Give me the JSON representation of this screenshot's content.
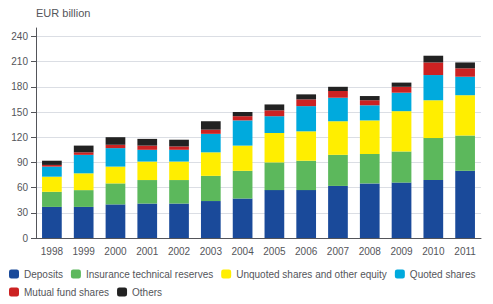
{
  "chart_data": {
    "type": "bar",
    "stacked": true,
    "ylabel": "EUR billion",
    "categories": [
      "1998",
      "1999",
      "2000",
      "2001",
      "2002",
      "2003",
      "2004",
      "2005",
      "2006",
      "2007",
      "2008",
      "2009",
      "2010",
      "2011"
    ],
    "series": [
      {
        "name": "Deposits",
        "color": "#1a4a9a",
        "values": [
          37,
          37,
          40,
          41,
          41,
          44,
          47,
          57,
          57,
          62,
          65,
          66,
          69,
          80
        ]
      },
      {
        "name": "Insurance technical reserves",
        "color": "#5cb85c",
        "values": [
          18,
          20,
          25,
          28,
          28,
          30,
          33,
          33,
          35,
          37,
          35,
          37,
          50,
          42
        ]
      },
      {
        "name": "Unquoted shares and other equity",
        "color": "#ffee00",
        "values": [
          18,
          20,
          20,
          22,
          22,
          28,
          30,
          35,
          35,
          40,
          40,
          48,
          45,
          48
        ]
      },
      {
        "name": "Quoted shares",
        "color": "#00aadd",
        "values": [
          12,
          22,
          22,
          14,
          14,
          22,
          30,
          20,
          30,
          28,
          18,
          22,
          30,
          22
        ]
      },
      {
        "name": "Mutual fund shares",
        "color": "#cc2222",
        "values": [
          2,
          3,
          4,
          5,
          4,
          5,
          5,
          7,
          8,
          8,
          6,
          7,
          15,
          10
        ]
      },
      {
        "name": "Others",
        "color": "#222222",
        "values": [
          5,
          8,
          9,
          8,
          8,
          10,
          5,
          7,
          6,
          5,
          5,
          5,
          8,
          7
        ]
      }
    ],
    "ylim": [
      0,
      250
    ],
    "yticks": [
      0,
      30,
      60,
      90,
      120,
      150,
      180,
      210,
      240
    ],
    "grid": true,
    "legend": "bottom"
  }
}
